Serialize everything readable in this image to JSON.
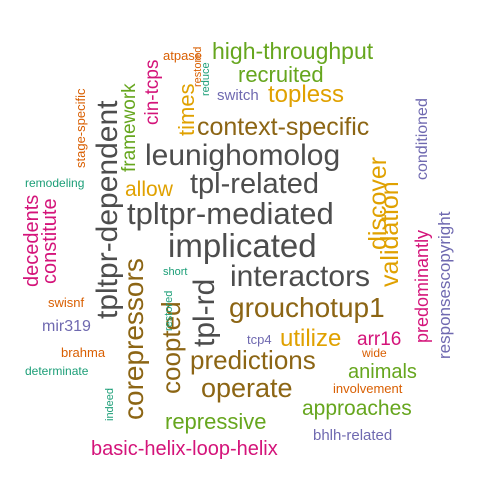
{
  "colors": {
    "background": "#ffffff",
    "dark_gray": "#4d4d4d",
    "brown": "#8c6514",
    "gold": "#e0a100",
    "green": "#66a61e",
    "magenta": "#d4147a",
    "purple": "#6f69b0",
    "orange": "#d95f02",
    "teal": "#1b9e77"
  },
  "words": [
    {
      "text": "implicated",
      "color": "#4d4d4d",
      "orientation": "horizontal"
    },
    {
      "text": "tpltpr-mediated",
      "color": "#4d4d4d",
      "orientation": "horizontal"
    },
    {
      "text": "tpl-related",
      "color": "#4d4d4d",
      "orientation": "horizontal"
    },
    {
      "text": "leunighomolog",
      "color": "#4d4d4d",
      "orientation": "horizontal"
    },
    {
      "text": "interactors",
      "color": "#4d4d4d",
      "orientation": "horizontal"
    },
    {
      "text": "tpltpr-dependent",
      "color": "#4d4d4d",
      "orientation": "vertical"
    },
    {
      "text": "tpl-rd",
      "color": "#4d4d4d",
      "orientation": "vertical"
    },
    {
      "text": "corepressors",
      "color": "#8c6514",
      "orientation": "vertical"
    },
    {
      "text": "coopted",
      "color": "#8c6514",
      "orientation": "vertical"
    },
    {
      "text": "context-specific",
      "color": "#8c6514",
      "orientation": "horizontal"
    },
    {
      "text": "grouchotup1",
      "color": "#8c6514",
      "orientation": "horizontal"
    },
    {
      "text": "predictions",
      "color": "#8c6514",
      "orientation": "horizontal"
    },
    {
      "text": "operate",
      "color": "#8c6514",
      "orientation": "horizontal"
    },
    {
      "text": "topless",
      "color": "#e0a100",
      "orientation": "horizontal"
    },
    {
      "text": "allow",
      "color": "#e0a100",
      "orientation": "horizontal"
    },
    {
      "text": "times",
      "color": "#e0a100",
      "orientation": "vertical"
    },
    {
      "text": "discover",
      "color": "#e0a100",
      "orientation": "vertical"
    },
    {
      "text": "validation",
      "color": "#e0a100",
      "orientation": "vertical"
    },
    {
      "text": "utilize",
      "color": "#e0a100",
      "orientation": "horizontal"
    },
    {
      "text": "high-throughput",
      "color": "#66a61e",
      "orientation": "horizontal"
    },
    {
      "text": "recruited",
      "color": "#66a61e",
      "orientation": "horizontal"
    },
    {
      "text": "framework",
      "color": "#66a61e",
      "orientation": "vertical"
    },
    {
      "text": "animals",
      "color": "#66a61e",
      "orientation": "horizontal"
    },
    {
      "text": "approaches",
      "color": "#66a61e",
      "orientation": "horizontal"
    },
    {
      "text": "repressive",
      "color": "#66a61e",
      "orientation": "horizontal"
    },
    {
      "text": "cin-tcps",
      "color": "#d4147a",
      "orientation": "vertical"
    },
    {
      "text": "decedents",
      "color": "#d4147a",
      "orientation": "vertical"
    },
    {
      "text": "constitute",
      "color": "#d4147a",
      "orientation": "vertical"
    },
    {
      "text": "predominantly",
      "color": "#d4147a",
      "orientation": "vertical"
    },
    {
      "text": "arr16",
      "color": "#d4147a",
      "orientation": "horizontal"
    },
    {
      "text": "basic-helix-loop-helix",
      "color": "#d4147a",
      "orientation": "horizontal"
    },
    {
      "text": "switch",
      "color": "#6f69b0",
      "orientation": "horizontal"
    },
    {
      "text": "conditioned",
      "color": "#6f69b0",
      "orientation": "vertical"
    },
    {
      "text": "responsescopyright",
      "color": "#6f69b0",
      "orientation": "vertical"
    },
    {
      "text": "mir319",
      "color": "#6f69b0",
      "orientation": "horizontal"
    },
    {
      "text": "tcp4",
      "color": "#6f69b0",
      "orientation": "horizontal"
    },
    {
      "text": "bhlh-related",
      "color": "#6f69b0",
      "orientation": "horizontal"
    },
    {
      "text": "atpase",
      "color": "#d95f02",
      "orientation": "horizontal"
    },
    {
      "text": "restored",
      "color": "#d95f02",
      "orientation": "vertical"
    },
    {
      "text": "stage-specific",
      "color": "#d95f02",
      "orientation": "vertical"
    },
    {
      "text": "swisnf",
      "color": "#d95f02",
      "orientation": "horizontal"
    },
    {
      "text": "brahma",
      "color": "#d95f02",
      "orientation": "horizontal"
    },
    {
      "text": "wide",
      "color": "#d95f02",
      "orientation": "horizontal"
    },
    {
      "text": "involvement",
      "color": "#d95f02",
      "orientation": "horizontal"
    },
    {
      "text": "reduce",
      "color": "#1b9e77",
      "orientation": "vertical"
    },
    {
      "text": "remodeling",
      "color": "#1b9e77",
      "orientation": "horizontal"
    },
    {
      "text": "short",
      "color": "#1b9e77",
      "orientation": "horizontal"
    },
    {
      "text": "restored",
      "color": "#1b9e77",
      "orientation": "vertical"
    },
    {
      "text": "determinate",
      "color": "#1b9e77",
      "orientation": "horizontal"
    },
    {
      "text": "indeed",
      "color": "#1b9e77",
      "orientation": "vertical"
    }
  ]
}
